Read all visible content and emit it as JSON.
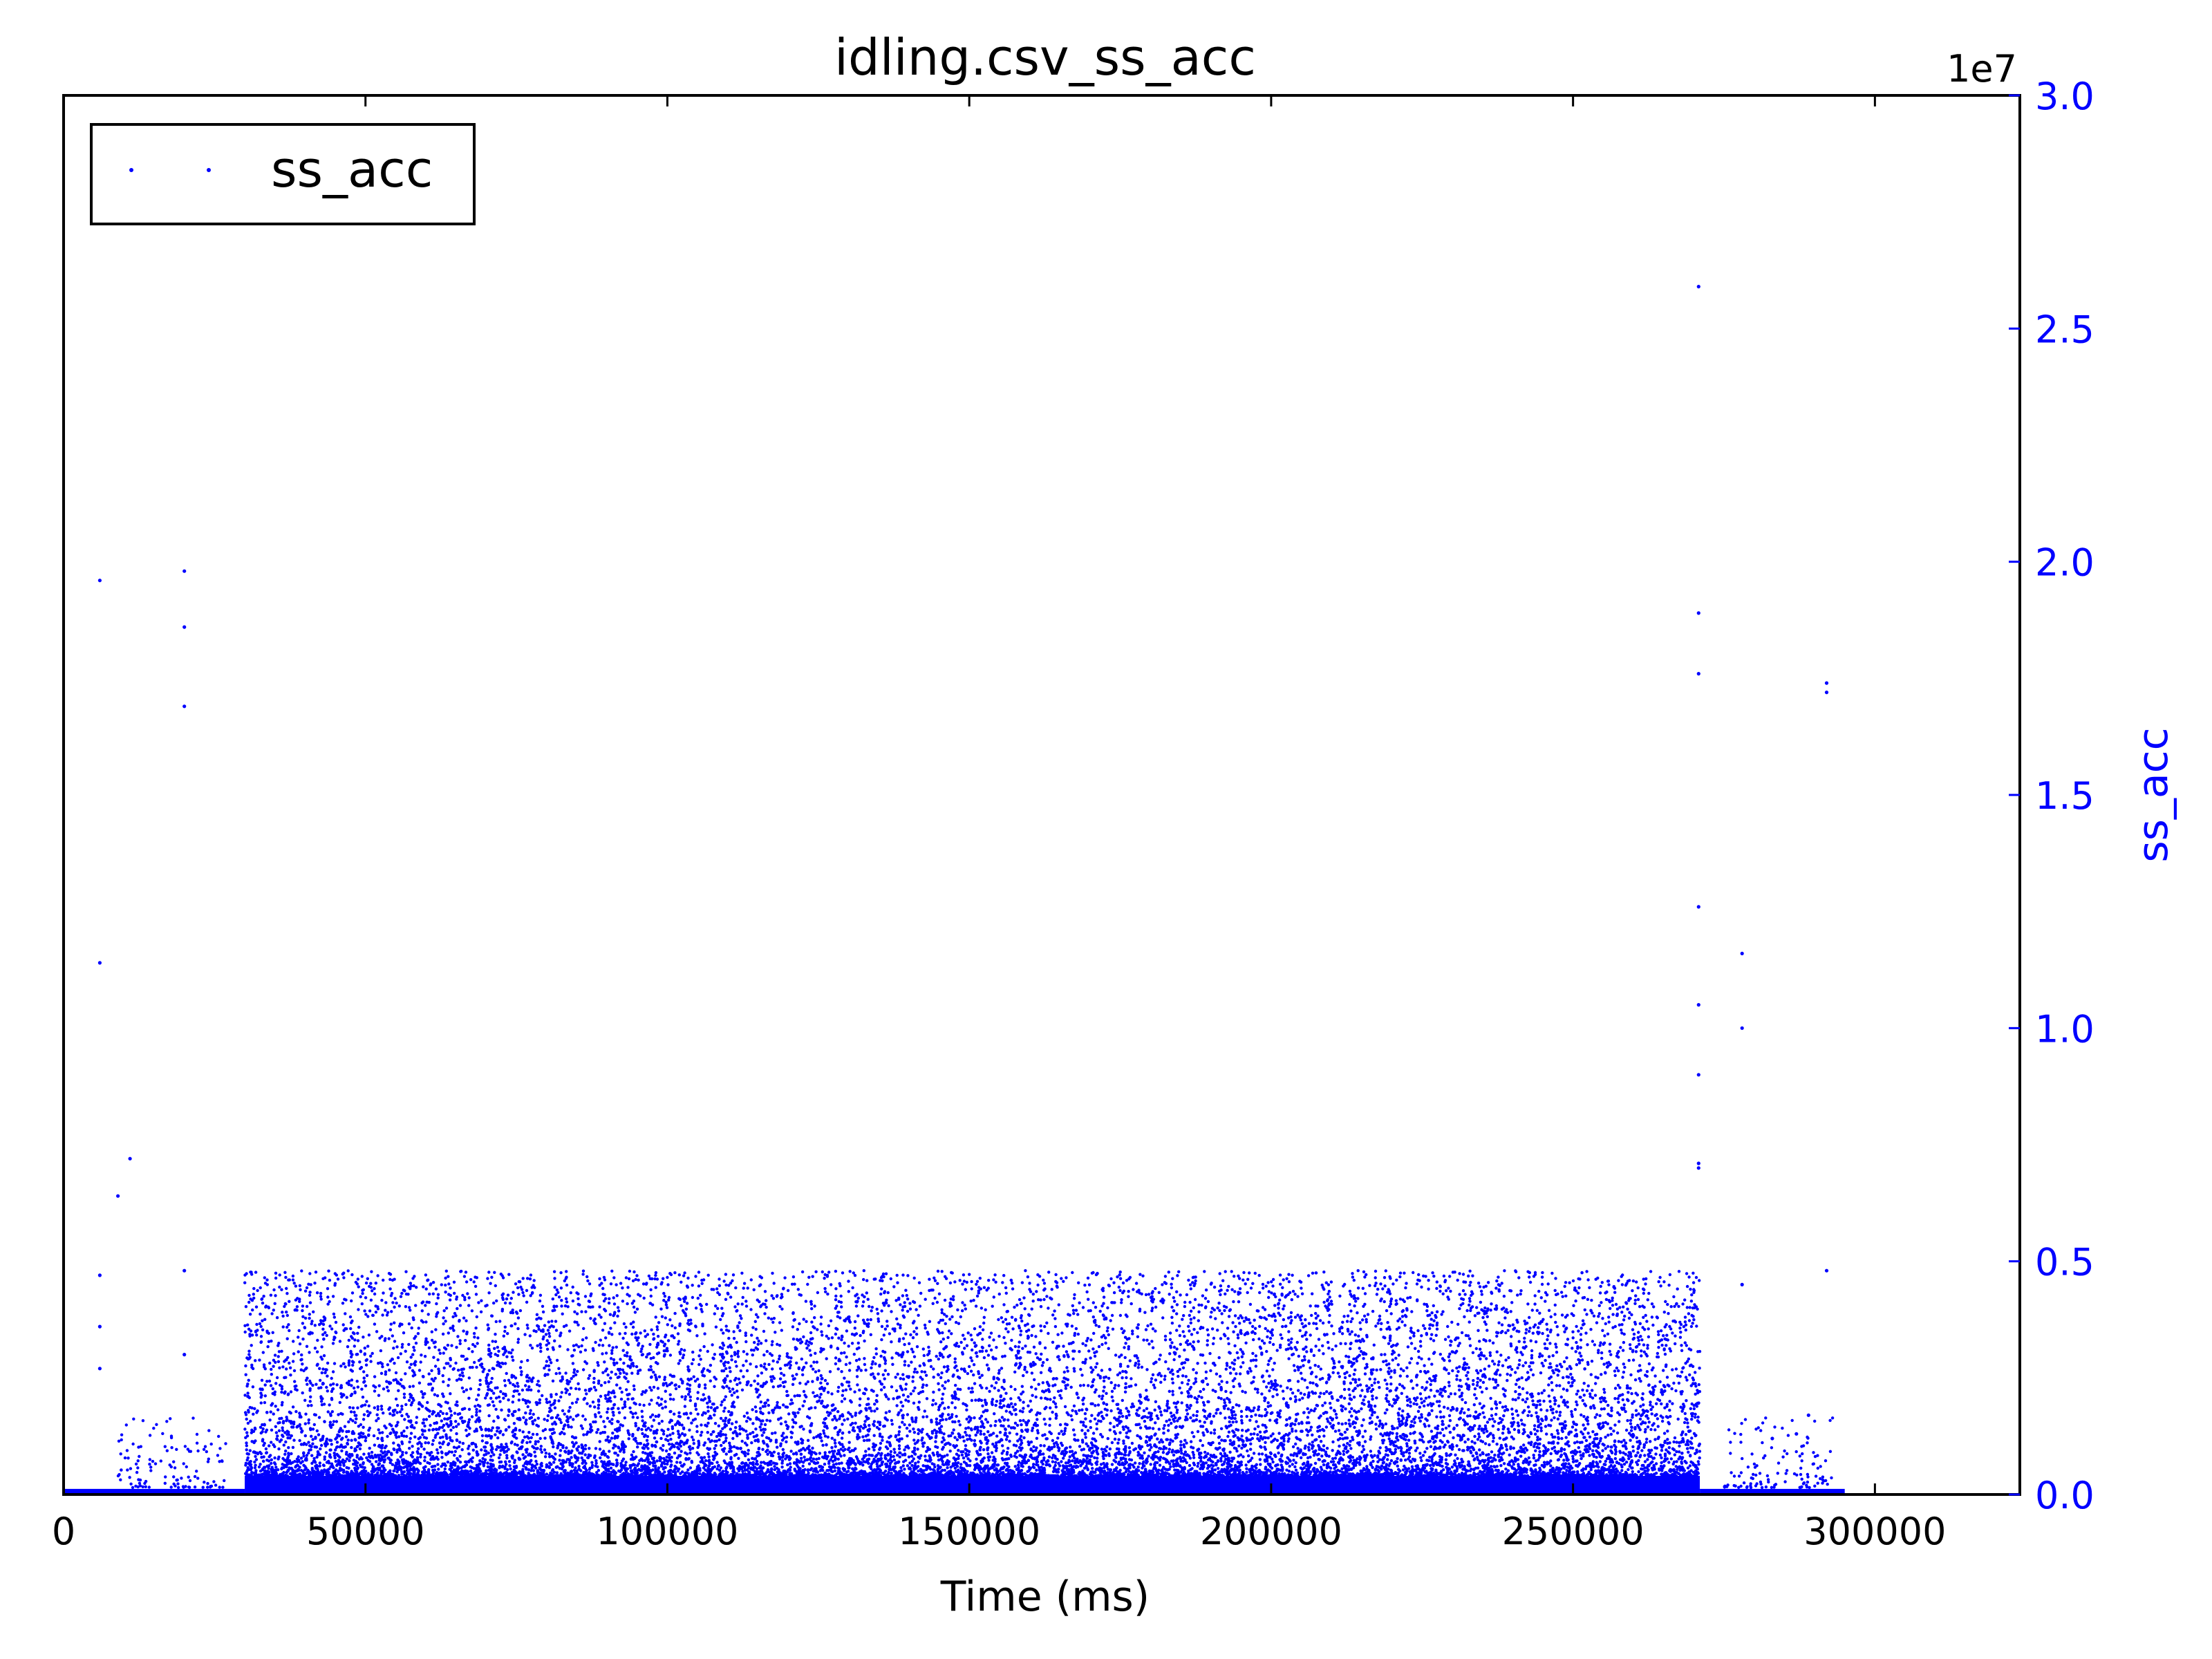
{
  "chart_data": {
    "type": "scatter",
    "title": "idling.csv_ss_acc",
    "xlabel": "Time (ms)",
    "ylabel": "ss_acc",
    "y_axis_side": "right",
    "y_offset_label": "1e7",
    "xlim": [
      0,
      324000
    ],
    "ylim": [
      0,
      30000000
    ],
    "x_ticks": [
      0,
      50000,
      100000,
      150000,
      200000,
      250000,
      300000
    ],
    "x_tick_labels": [
      "0",
      "50000",
      "100000",
      "150000",
      "200000",
      "250000",
      "300000"
    ],
    "y_ticks": [
      0,
      5000000,
      10000000,
      15000000,
      20000000,
      25000000,
      30000000
    ],
    "y_tick_labels": [
      "0.0",
      "0.5",
      "1.0",
      "1.5",
      "2.0",
      "2.5",
      "3.0"
    ],
    "grid": false,
    "legend_position": "top-left",
    "colors": {
      "series": "#0000ff",
      "axes": "#000000",
      "y_axis": "#0000ff"
    },
    "series": [
      {
        "name": "ss_acc",
        "marker": "point",
        "dense_band": {
          "x_range": [
            30000,
            271000
          ],
          "y_baseline": 400000,
          "y_typical_max": 4800000,
          "approx_points": 90000
        },
        "x": [
          6000,
          6000,
          6000,
          6000,
          6000,
          11000,
          9000,
          20000,
          20000,
          20000,
          20000,
          20000,
          270800,
          270800,
          270800,
          270800,
          270800,
          270800,
          270800,
          270800,
          278000,
          278000,
          278000,
          292000,
          292000,
          292000,
          283000,
          287000,
          289000
        ],
        "y": [
          19600000,
          11400000,
          4700000,
          3600000,
          2700000,
          7200000,
          6400000,
          19800000,
          18600000,
          16900000,
          4800000,
          3000000,
          25900000,
          18900000,
          17600000,
          12600000,
          10500000,
          9000000,
          7100000,
          7000000,
          11600000,
          10000000,
          4500000,
          17400000,
          17200000,
          4800000,
          1200000,
          1300000,
          1700000
        ]
      }
    ]
  }
}
